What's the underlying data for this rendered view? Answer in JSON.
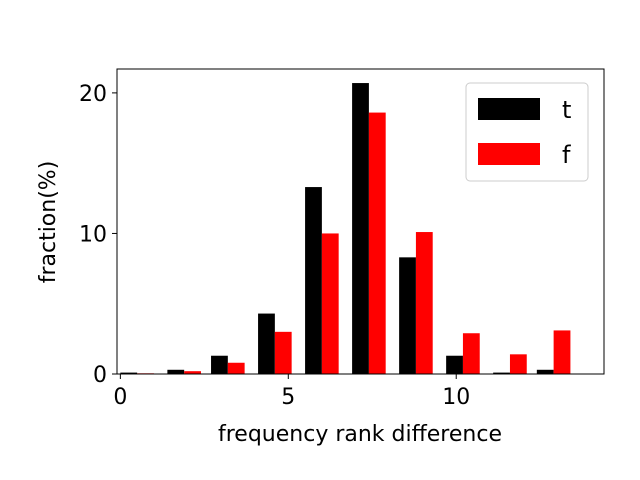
{
  "chart_data": {
    "type": "bar",
    "xlabel": "frequency rank difference",
    "ylabel": "fraction(%)",
    "xlim": [
      -0.1,
      14.4
    ],
    "ylim": [
      0,
      21.7
    ],
    "xticks": [
      0,
      5,
      10
    ],
    "yticks": [
      0,
      10,
      20
    ],
    "x": [
      0.5,
      1.9,
      3.2,
      4.6,
      6.0,
      7.4,
      8.8,
      10.2,
      11.6,
      12.9
    ],
    "bar_width": 0.5,
    "legend_position": "top-right",
    "series": [
      {
        "name": "t",
        "color": "#000000",
        "values": [
          0.1,
          0.3,
          1.3,
          4.3,
          13.3,
          20.7,
          8.3,
          1.3,
          0.1,
          0.3
        ]
      },
      {
        "name": "f",
        "color": "#ff0000",
        "values": [
          0.05,
          0.2,
          0.8,
          3.0,
          10.0,
          18.6,
          10.1,
          2.9,
          1.4,
          3.1
        ]
      }
    ]
  }
}
